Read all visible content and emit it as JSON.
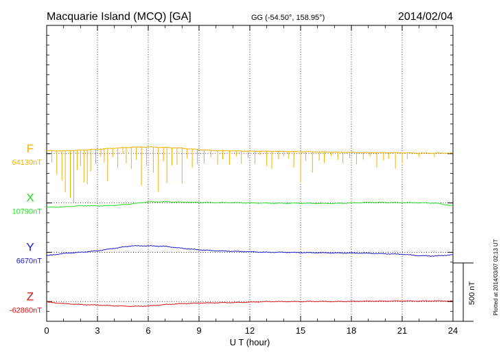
{
  "header": {
    "station": "Macquarie Island (MCQ)  [GA]",
    "coords": "GG (-54.50°, 158.95°)",
    "date": "2014/02/04"
  },
  "footer_note": "Plotted at 2014/03/07 02:13 UT",
  "scale_bar_label": "500 nT",
  "chart_data": {
    "type": "line",
    "title": "Macquarie Island (MCQ)  [GA]",
    "xlabel": "U T (hour)",
    "xlim": [
      0,
      24
    ],
    "xticks": [
      0,
      3,
      6,
      9,
      12,
      15,
      18,
      21,
      24
    ],
    "x_tick_labels": [
      "0",
      "3",
      "6",
      "9",
      "12",
      "15",
      "18",
      "21",
      "24"
    ],
    "grid": true,
    "units": "nT",
    "scale_bar_nT": 500,
    "ylim_nT": [
      -1700,
      1300
    ],
    "baselines": {
      "F": 0,
      "X": -500,
      "Y": -1000,
      "Z": -1500
    },
    "series": [
      {
        "name": "F",
        "label": "64130nT",
        "color": "#f0b000",
        "points": [
          [
            0,
            30
          ],
          [
            1,
            28
          ],
          [
            2,
            35
          ],
          [
            3,
            45
          ],
          [
            4,
            55
          ],
          [
            5,
            65
          ],
          [
            6,
            68
          ],
          [
            7,
            62
          ],
          [
            8,
            55
          ],
          [
            9,
            40
          ],
          [
            10,
            30
          ],
          [
            11,
            28
          ],
          [
            12,
            25
          ],
          [
            13,
            24
          ],
          [
            14,
            22
          ],
          [
            15,
            20
          ],
          [
            16,
            18
          ],
          [
            17,
            15
          ],
          [
            18,
            12
          ],
          [
            19,
            10
          ],
          [
            20,
            10
          ],
          [
            21,
            8
          ],
          [
            22,
            5
          ],
          [
            23,
            5
          ],
          [
            24,
            5
          ]
        ],
        "spikes": [
          [
            0.3,
            -120
          ],
          [
            0.6,
            -240
          ],
          [
            0.9,
            -300
          ],
          [
            1.1,
            -420
          ],
          [
            1.4,
            -480
          ],
          [
            1.6,
            -530
          ],
          [
            1.8,
            -200
          ],
          [
            2.0,
            -160
          ],
          [
            2.2,
            -330
          ],
          [
            2.4,
            -350
          ],
          [
            2.6,
            -220
          ],
          [
            2.9,
            -150
          ],
          [
            3.2,
            -80
          ],
          [
            3.4,
            -140
          ],
          [
            3.6,
            -330
          ],
          [
            3.9,
            -90
          ],
          [
            4.2,
            -200
          ],
          [
            4.5,
            -60
          ],
          [
            4.7,
            -160
          ],
          [
            5.0,
            -220
          ],
          [
            5.3,
            -130
          ],
          [
            5.6,
            -390
          ],
          [
            5.9,
            -190
          ],
          [
            6.3,
            -260
          ],
          [
            6.6,
            -450
          ],
          [
            6.9,
            -140
          ],
          [
            7.1,
            -360
          ],
          [
            7.4,
            -180
          ],
          [
            7.7,
            -170
          ],
          [
            8.0,
            -360
          ],
          [
            8.3,
            -100
          ],
          [
            8.6,
            -190
          ],
          [
            8.9,
            -150
          ],
          [
            9.3,
            -140
          ],
          [
            9.7,
            -70
          ],
          [
            10.1,
            -140
          ],
          [
            10.4,
            -90
          ],
          [
            10.8,
            -140
          ],
          [
            11.2,
            -60
          ],
          [
            11.5,
            -130
          ],
          [
            11.9,
            -70
          ],
          [
            12.3,
            -130
          ],
          [
            12.6,
            -40
          ],
          [
            13.0,
            -150
          ],
          [
            13.3,
            -180
          ],
          [
            13.7,
            -80
          ],
          [
            14.0,
            -50
          ],
          [
            14.3,
            -70
          ],
          [
            14.6,
            -160
          ],
          [
            15.0,
            -310
          ],
          [
            15.3,
            -90
          ],
          [
            15.7,
            -210
          ],
          [
            16.1,
            -90
          ],
          [
            16.4,
            -110
          ],
          [
            16.8,
            -40
          ],
          [
            17.2,
            -80
          ],
          [
            17.5,
            -110
          ],
          [
            17.9,
            -60
          ],
          [
            18.3,
            -120
          ],
          [
            18.7,
            -70
          ],
          [
            19.1,
            -40
          ],
          [
            19.5,
            -150
          ],
          [
            19.9,
            -80
          ],
          [
            20.2,
            -60
          ],
          [
            20.6,
            -160
          ],
          [
            21.0,
            -110
          ],
          [
            21.3,
            -60
          ],
          [
            22.0,
            -40
          ],
          [
            22.9,
            -40
          ]
        ]
      },
      {
        "name": "X",
        "label": "10790nT",
        "color": "#22dd22",
        "points": [
          [
            0,
            -545
          ],
          [
            1,
            -540
          ],
          [
            2,
            -528
          ],
          [
            3,
            -530
          ],
          [
            4,
            -525
          ],
          [
            5,
            -510
          ],
          [
            6,
            -490
          ],
          [
            7,
            -488
          ],
          [
            8,
            -492
          ],
          [
            9,
            -495
          ],
          [
            10,
            -497
          ],
          [
            11,
            -497
          ],
          [
            12,
            -500
          ],
          [
            13,
            -502
          ],
          [
            14,
            -503
          ],
          [
            15,
            -502
          ],
          [
            16,
            -505
          ],
          [
            17,
            -505
          ],
          [
            18,
            -500
          ],
          [
            19,
            -495
          ],
          [
            20,
            -495
          ],
          [
            21,
            -497
          ],
          [
            22,
            -498
          ],
          [
            23,
            -502
          ],
          [
            24,
            -530
          ]
        ]
      },
      {
        "name": "Y",
        "label": "6670nT",
        "color": "#1a1acc",
        "points": [
          [
            0,
            -1035
          ],
          [
            1,
            -1012
          ],
          [
            2,
            -1000
          ],
          [
            3,
            -985
          ],
          [
            4,
            -960
          ],
          [
            5,
            -935
          ],
          [
            6,
            -935
          ],
          [
            7,
            -940
          ],
          [
            8,
            -960
          ],
          [
            9,
            -975
          ],
          [
            10,
            -985
          ],
          [
            11,
            -990
          ],
          [
            12,
            -995
          ],
          [
            13,
            -1000
          ],
          [
            14,
            -1000
          ],
          [
            15,
            -1003
          ],
          [
            16,
            -1005
          ],
          [
            17,
            -1007
          ],
          [
            18,
            -1008
          ],
          [
            19,
            -1010
          ],
          [
            20,
            -1015
          ],
          [
            21,
            -1020
          ],
          [
            22,
            -1035
          ],
          [
            23,
            -1038
          ],
          [
            24,
            -1025
          ]
        ]
      },
      {
        "name": "Z",
        "label": "-62860nT",
        "color": "#dd1111",
        "points": [
          [
            0,
            -1505
          ],
          [
            1,
            -1520
          ],
          [
            2,
            -1530
          ],
          [
            3,
            -1535
          ],
          [
            4,
            -1543
          ],
          [
            5,
            -1548
          ],
          [
            6,
            -1545
          ],
          [
            7,
            -1530
          ],
          [
            8,
            -1520
          ],
          [
            9,
            -1515
          ],
          [
            10,
            -1512
          ],
          [
            11,
            -1510
          ],
          [
            12,
            -1506
          ],
          [
            13,
            -1500
          ],
          [
            14,
            -1500
          ],
          [
            15,
            -1500
          ],
          [
            16,
            -1498
          ],
          [
            17,
            -1500
          ],
          [
            18,
            -1498
          ],
          [
            19,
            -1496
          ],
          [
            20,
            -1495
          ],
          [
            21,
            -1493
          ],
          [
            22,
            -1495
          ],
          [
            23,
            -1493
          ],
          [
            24,
            -1495
          ]
        ]
      }
    ]
  }
}
